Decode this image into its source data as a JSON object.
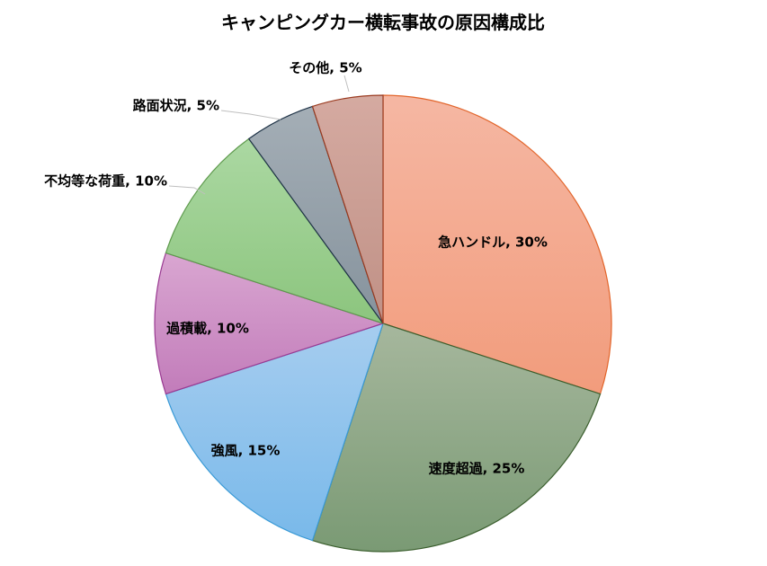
{
  "chart_data": {
    "type": "pie",
    "title": "キャンピングカー横転事故の原因構成比",
    "slices": [
      {
        "label": "急ハンドル",
        "value": 30,
        "display": "急ハンドル, 30%",
        "fill_top": "#f5b7a3",
        "fill_bottom": "#f29c7c",
        "stroke": "#e2652b"
      },
      {
        "label": "速度超過",
        "value": 25,
        "display": "速度超過, 25%",
        "fill_top": "#a6b79d",
        "fill_bottom": "#7a9a74",
        "stroke": "#3a5e2d"
      },
      {
        "label": "強風",
        "value": 15,
        "display": "強風, 15%",
        "fill_top": "#a6cdef",
        "fill_bottom": "#79b9ea",
        "stroke": "#3a9ad6"
      },
      {
        "label": "過積載",
        "value": 10,
        "display": "過積載, 10%",
        "fill_top": "#d9a6d1",
        "fill_bottom": "#c27cba",
        "stroke": "#9a3a92"
      },
      {
        "label": "不均等な荷重",
        "value": 10,
        "display": "不均等な荷重, 10%",
        "fill_top": "#abd8a2",
        "fill_bottom": "#8cc57e",
        "stroke": "#5e9a4d"
      },
      {
        "label": "路面状況",
        "value": 5,
        "display": "路面状況, 5%",
        "fill_top": "#a4aeb6",
        "fill_bottom": "#86939d",
        "stroke": "#1f3347"
      },
      {
        "label": "その他",
        "value": 5,
        "display": "その他, 5%",
        "fill_top": "#d5aaa1",
        "fill_bottom": "#c09186",
        "stroke": "#9a3a1f"
      }
    ],
    "start_angle": "12 o'clock",
    "direction": "clockwise",
    "legend": "none"
  }
}
